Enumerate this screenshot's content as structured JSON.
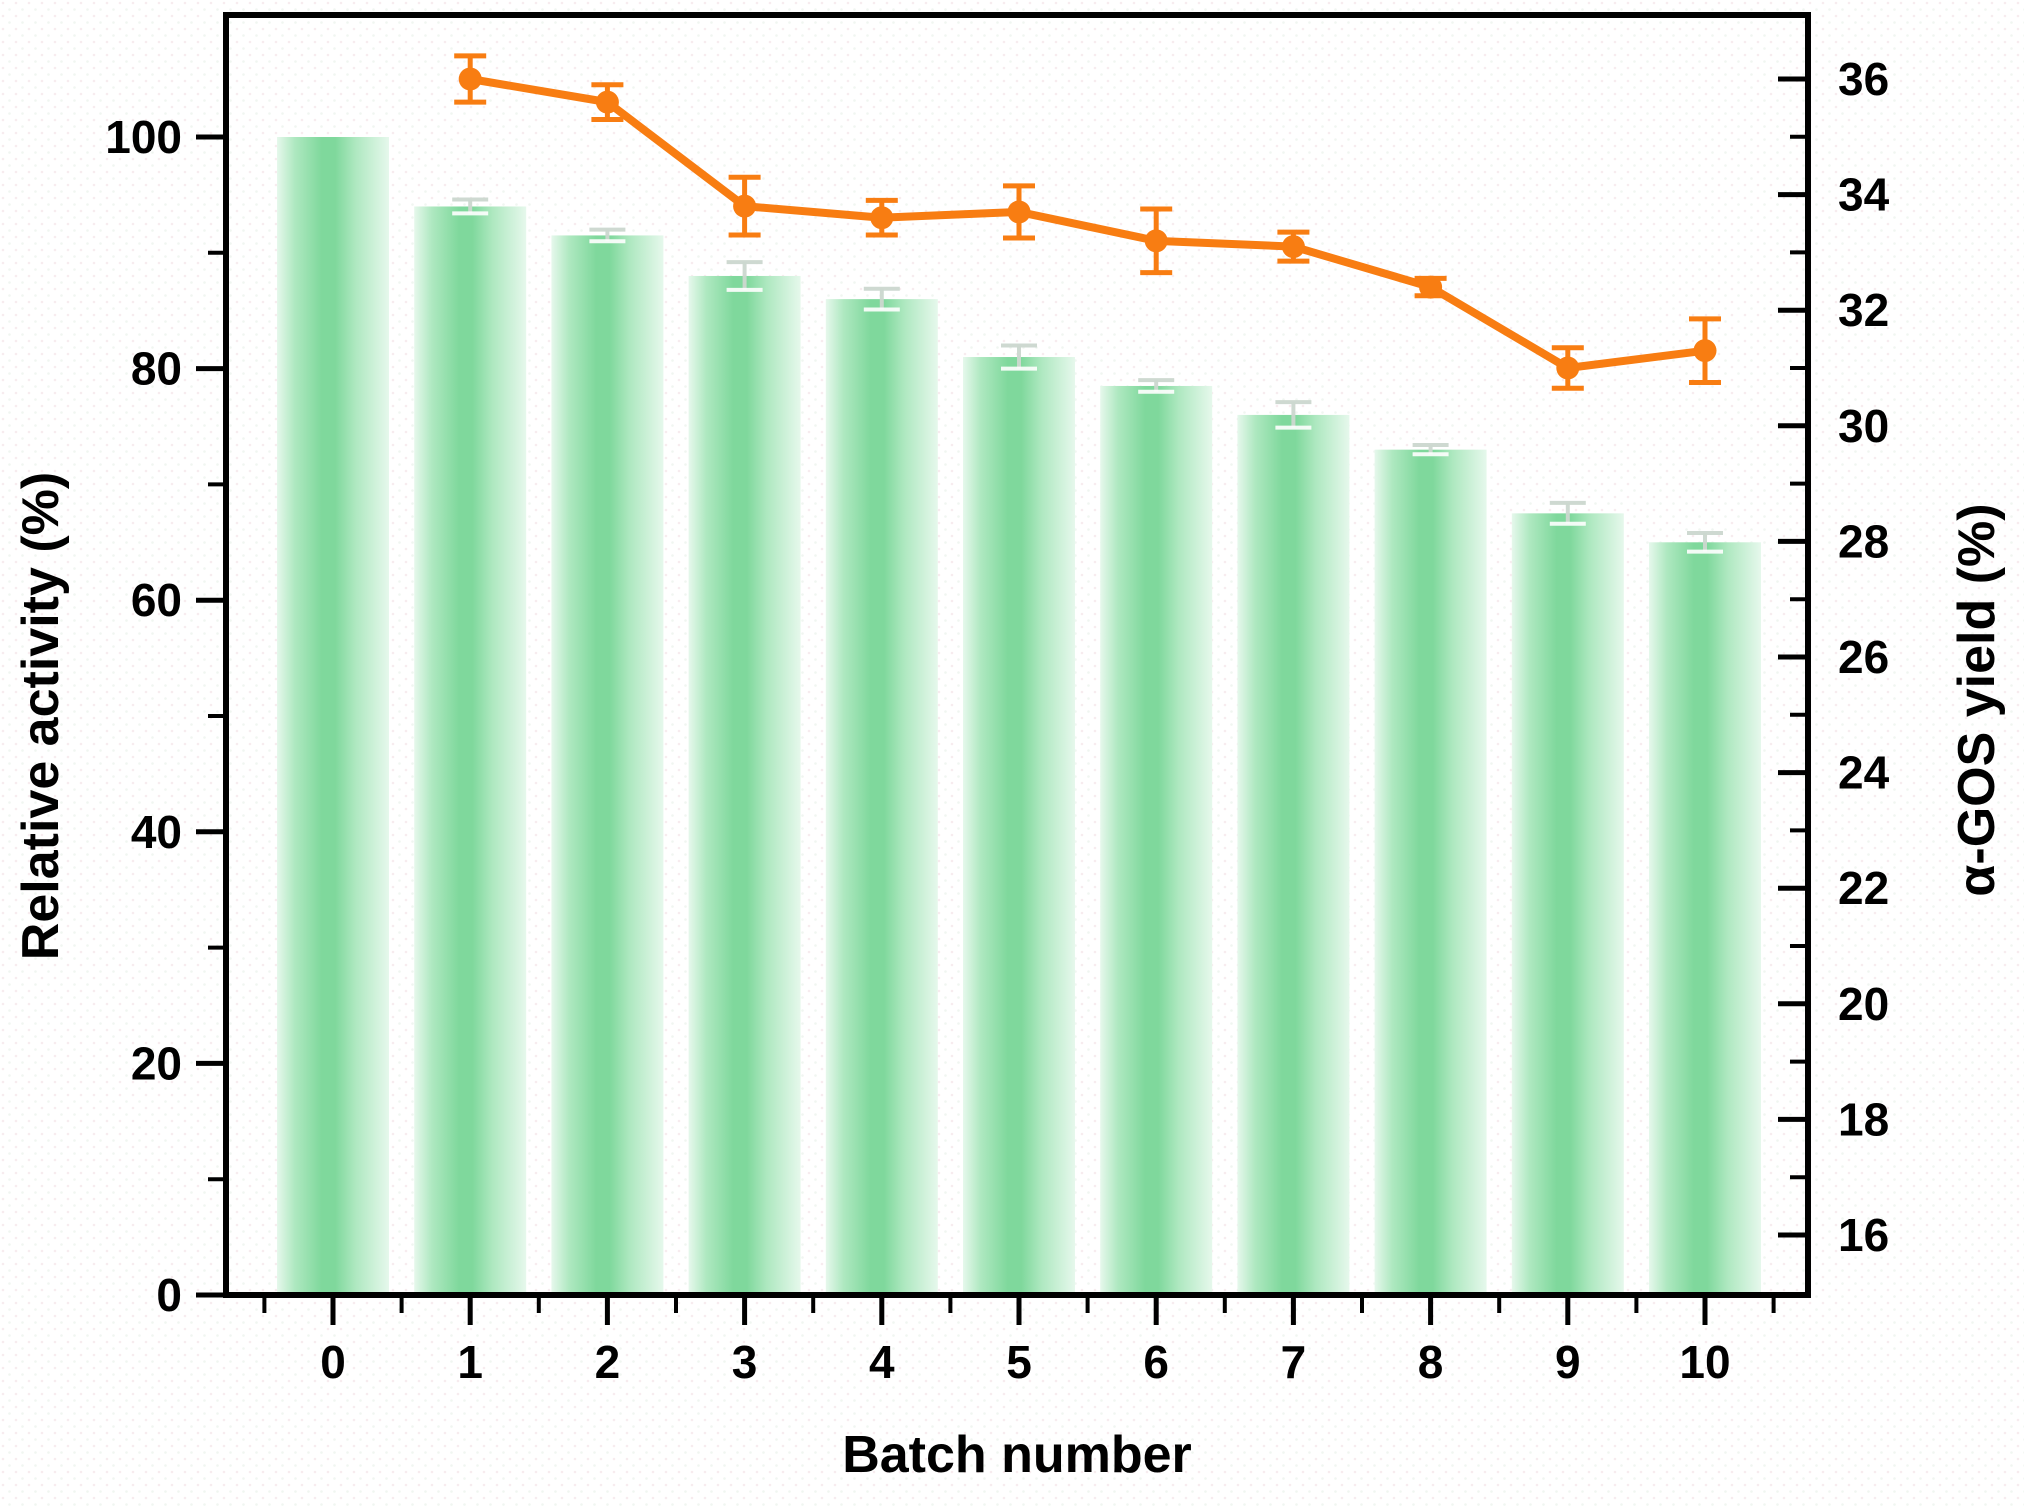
{
  "chart_data": {
    "type": "bar-line-combo",
    "categories": [
      "0",
      "1",
      "2",
      "3",
      "4",
      "5",
      "6",
      "7",
      "8",
      "9",
      "10"
    ],
    "series": [
      {
        "name": "Relative activity",
        "type": "bar",
        "axis": "left",
        "values": [
          100,
          94,
          91.5,
          88,
          86,
          81,
          78.5,
          76,
          73,
          67.5,
          65
        ],
        "errors": [
          0,
          0.6,
          0.5,
          1.2,
          0.9,
          1.0,
          0.5,
          1.1,
          0.4,
          0.9,
          0.8
        ],
        "bar_edge_color": "#e6f8ec",
        "bar_mid_color": "#aee8c0",
        "bar_center_color": "#7fd89c",
        "error_color": "#ccd8cf"
      },
      {
        "name": "α-GOS yield",
        "type": "line",
        "axis": "right",
        "x": [
          1,
          2,
          3,
          4,
          5,
          6,
          7,
          8,
          9,
          10
        ],
        "values": [
          36.0,
          35.6,
          33.8,
          33.6,
          33.7,
          33.2,
          33.1,
          32.4,
          31.0,
          31.3
        ],
        "errors": [
          0.4,
          0.3,
          0.5,
          0.3,
          0.45,
          0.55,
          0.25,
          0.15,
          0.35,
          0.55
        ],
        "color": "#f87d12"
      }
    ],
    "x_axis": {
      "label": "Batch number",
      "tick_labels": [
        "0",
        "1",
        "2",
        "3",
        "4",
        "5",
        "6",
        "7",
        "8",
        "9",
        "10"
      ]
    },
    "left_axis": {
      "label": "Relative activity (%)",
      "ticks": [
        0,
        20,
        40,
        60,
        80,
        100
      ],
      "min": 0,
      "max": 110.5
    },
    "right_axis": {
      "label": "α-GOS yield (%)",
      "ticks": [
        16,
        18,
        20,
        22,
        24,
        26,
        28,
        30,
        32,
        34,
        36
      ],
      "min": 15.0,
      "max": 37.1
    },
    "frame_color": "#000000",
    "background_dot_colors": [
      "#f0dde2",
      "#e4eee6"
    ],
    "grid": "off",
    "legend": "none"
  }
}
